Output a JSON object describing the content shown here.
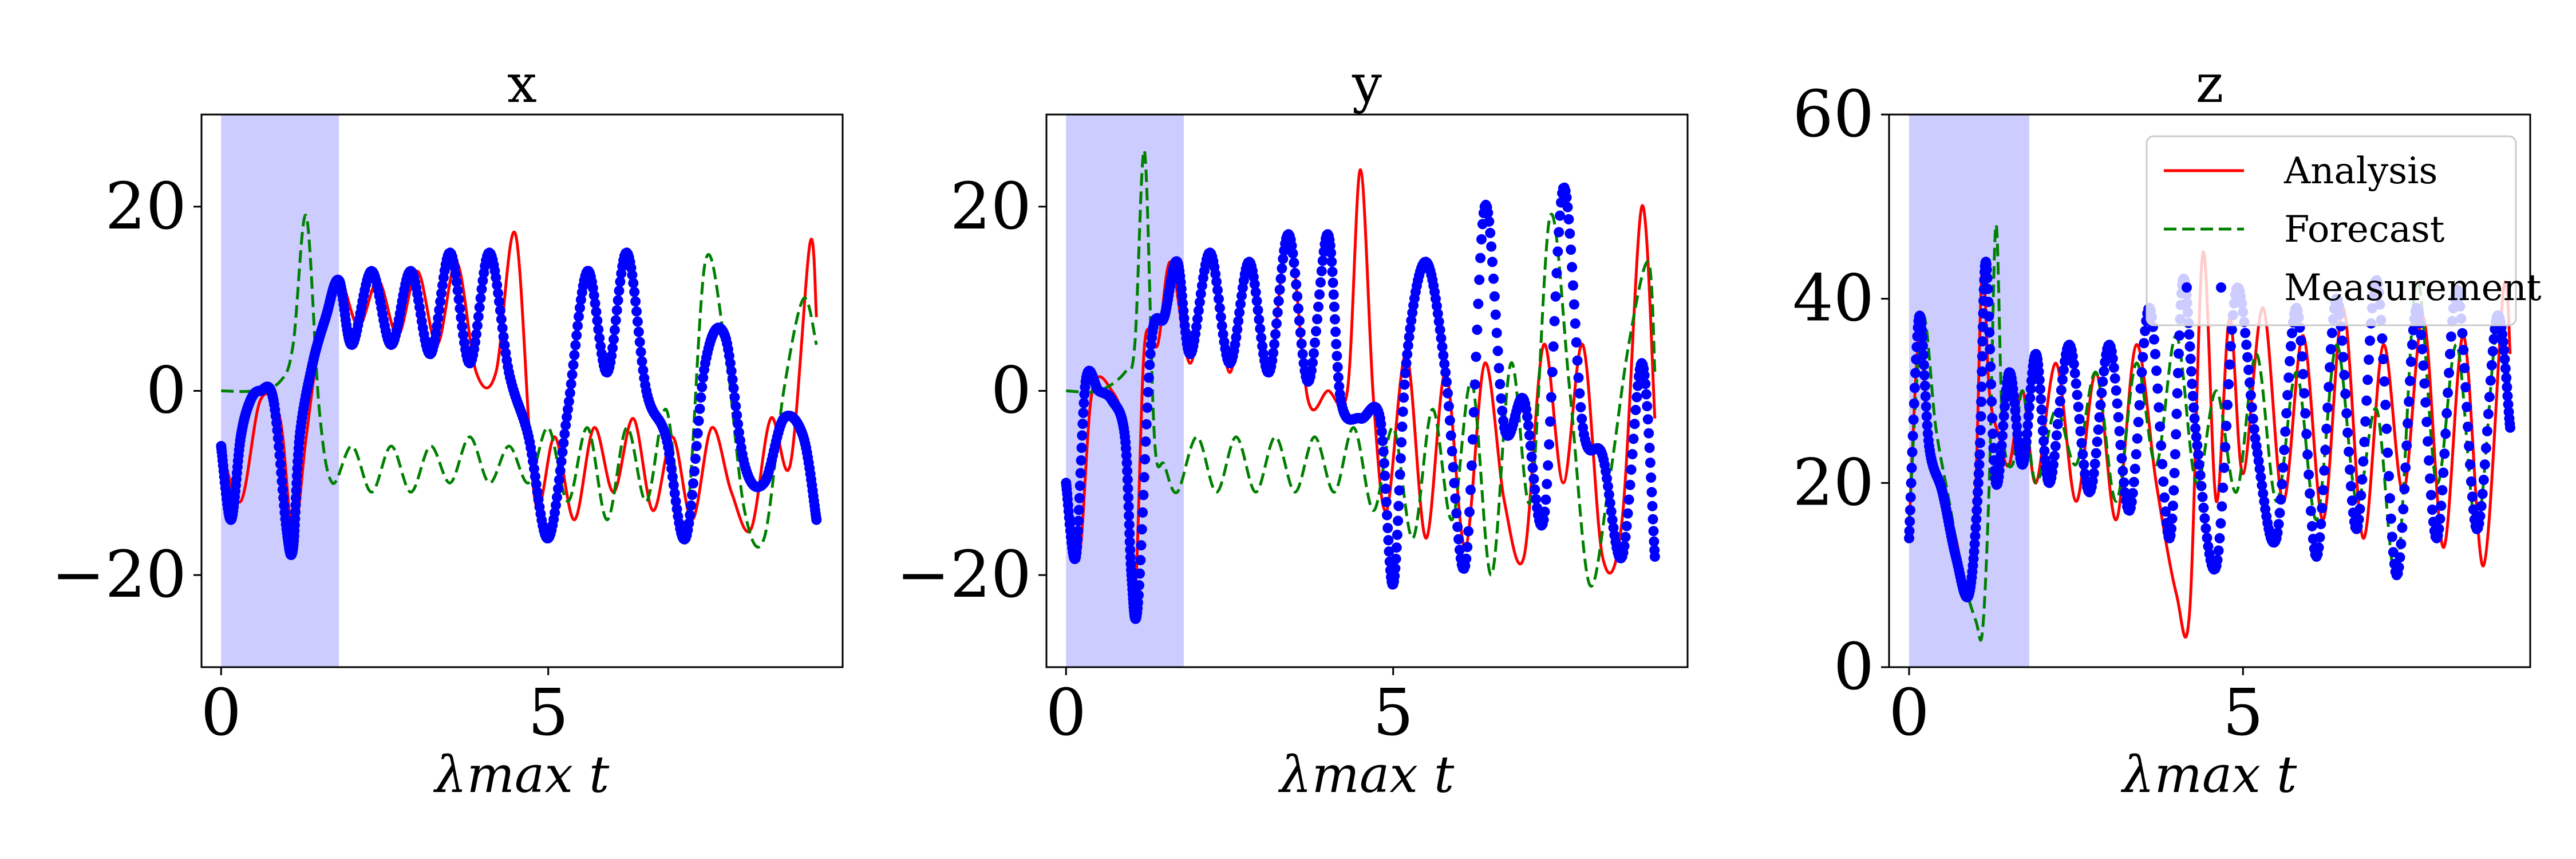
{
  "chart_data": [
    {
      "type": "line",
      "title": "x",
      "xlabel": "λmax t",
      "ylabel": "",
      "xlim": [
        -0.3,
        9.5
      ],
      "ylim": [
        -30,
        30
      ],
      "xticks": [
        0,
        5
      ],
      "yticks": [
        -20,
        0,
        20
      ],
      "ytick_labels": [
        "−20",
        "0",
        "20"
      ],
      "grid": false,
      "shaded_region": [
        0,
        1.8
      ],
      "series": [
        {
          "name": "Analysis",
          "color": "#ff0000",
          "style": "solid",
          "x": [
            0.0,
            0.3,
            0.6,
            0.9,
            1.1,
            1.3,
            1.5,
            1.8,
            2.1,
            2.4,
            2.7,
            3.0,
            3.3,
            3.6,
            3.9,
            4.2,
            4.5,
            4.8,
            5.1,
            5.4,
            5.7,
            6.0,
            6.3,
            6.6,
            6.9,
            7.2,
            7.5,
            7.8,
            8.1,
            8.4,
            8.7,
            9.0,
            9.1
          ],
          "y": [
            -6,
            -12,
            -1,
            -3,
            -16,
            -5,
            5,
            12,
            7,
            12,
            6,
            13,
            5,
            14,
            2,
            2,
            17,
            -12,
            -5,
            -14,
            -4,
            -11,
            -3,
            -13,
            -5,
            -14,
            -4,
            -11,
            -15,
            -3,
            -8,
            16,
            8
          ]
        },
        {
          "name": "Forecast",
          "color": "#008000",
          "style": "dashed",
          "x": [
            0.0,
            0.5,
            0.9,
            1.1,
            1.3,
            1.5,
            1.7,
            2.0,
            2.3,
            2.6,
            2.9,
            3.2,
            3.5,
            3.8,
            4.1,
            4.4,
            4.7,
            5.0,
            5.3,
            5.6,
            5.9,
            6.2,
            6.5,
            6.8,
            7.1,
            7.4,
            7.7,
            8.0,
            8.3,
            8.6,
            8.9,
            9.1
          ],
          "y": [
            0,
            0,
            1,
            5,
            19,
            -2,
            -10,
            -6,
            -11,
            -6,
            -11,
            -6,
            -10,
            -5,
            -10,
            -6,
            -10,
            -4,
            -12,
            -4,
            -14,
            -4,
            -12,
            -2,
            -15,
            14,
            5,
            -13,
            -16,
            0,
            10,
            5
          ]
        },
        {
          "name": "Measurement",
          "color": "#0000ff",
          "style": "dots",
          "x": [
            0.0,
            0.15,
            0.3,
            0.45,
            0.6,
            0.8,
            1.0,
            1.1,
            1.2,
            1.4,
            1.6,
            1.8,
            2.0,
            2.3,
            2.6,
            2.9,
            3.2,
            3.5,
            3.8,
            4.1,
            4.4,
            4.7,
            5.0,
            5.3,
            5.6,
            5.9,
            6.2,
            6.5,
            6.8,
            7.1,
            7.4,
            7.7,
            8.0,
            8.3,
            8.6,
            8.9,
            9.1
          ],
          "y": [
            -6,
            -14,
            -5,
            -1,
            0,
            -1,
            -15,
            -17,
            -5,
            3,
            8,
            12,
            5,
            13,
            5,
            13,
            4,
            15,
            3,
            15,
            2,
            -5,
            -16,
            -2,
            13,
            2,
            15,
            0,
            -5,
            -16,
            3,
            6,
            -8,
            -10,
            -3,
            -5,
            -14
          ]
        }
      ]
    },
    {
      "type": "line",
      "title": "y",
      "xlabel": "λmax t",
      "ylabel": "",
      "xlim": [
        -0.3,
        9.5
      ],
      "ylim": [
        -30,
        30
      ],
      "xticks": [
        0,
        5
      ],
      "yticks": [
        -20,
        0,
        20
      ],
      "ytick_labels": [
        "−20",
        "0",
        "20"
      ],
      "grid": false,
      "shaded_region": [
        0,
        1.8
      ],
      "series": [
        {
          "name": "Analysis",
          "color": "#ff0000",
          "style": "solid",
          "x": [
            0.0,
            0.2,
            0.4,
            0.7,
            0.9,
            1.05,
            1.2,
            1.4,
            1.6,
            1.9,
            2.2,
            2.5,
            2.8,
            3.1,
            3.4,
            3.7,
            4.0,
            4.3,
            4.5,
            4.7,
            4.9,
            5.2,
            5.5,
            5.8,
            6.1,
            6.4,
            6.7,
            7.0,
            7.3,
            7.6,
            7.9,
            8.2,
            8.5,
            8.8,
            9.0
          ],
          "y": [
            -12,
            -18,
            0,
            0,
            -5,
            -22,
            5,
            5,
            14,
            3,
            15,
            2,
            14,
            2,
            17,
            -1,
            0,
            0,
            24,
            -1,
            -13,
            4,
            -16,
            2,
            -17,
            3,
            -12,
            -18,
            5,
            -10,
            5,
            -18,
            -14,
            20,
            -3
          ]
        },
        {
          "name": "Forecast",
          "color": "#008000",
          "style": "dashed",
          "x": [
            0.0,
            0.5,
            0.9,
            1.05,
            1.2,
            1.35,
            1.5,
            1.7,
            2.0,
            2.3,
            2.6,
            2.9,
            3.2,
            3.5,
            3.8,
            4.1,
            4.4,
            4.7,
            5.0,
            5.3,
            5.6,
            5.9,
            6.2,
            6.5,
            6.8,
            7.1,
            7.4,
            7.7,
            8.0,
            8.3,
            8.6,
            8.9,
            9.0
          ],
          "y": [
            0,
            0,
            2,
            5,
            26,
            -5,
            -8,
            -11,
            -5,
            -11,
            -5,
            -11,
            -5,
            -11,
            -5,
            -11,
            -4,
            -13,
            -4,
            -16,
            -2,
            -14,
            1,
            -20,
            3,
            -12,
            19,
            0,
            -21,
            -10,
            5,
            14,
            2
          ]
        },
        {
          "name": "Measurement",
          "color": "#0000ff",
          "style": "dots",
          "x": [
            0.0,
            0.15,
            0.3,
            0.5,
            0.7,
            0.9,
            1.0,
            1.1,
            1.3,
            1.5,
            1.7,
            1.9,
            2.2,
            2.5,
            2.8,
            3.1,
            3.4,
            3.7,
            4.0,
            4.2,
            4.5,
            4.8,
            5.0,
            5.2,
            5.5,
            5.8,
            6.1,
            6.4,
            6.7,
            7.0,
            7.3,
            7.6,
            7.9,
            8.2,
            8.5,
            8.8,
            9.0
          ],
          "y": [
            -10,
            -18,
            1,
            0,
            -1,
            -5,
            -20,
            -23,
            5,
            8,
            14,
            4,
            15,
            3,
            14,
            2,
            17,
            1,
            17,
            -1,
            -3,
            -3,
            -21,
            3,
            14,
            2,
            -19,
            20,
            -4,
            -1,
            -14,
            22,
            -4,
            -7,
            -18,
            3,
            -18
          ]
        }
      ]
    },
    {
      "type": "line",
      "title": "z",
      "xlabel": "λmax t",
      "ylabel": "",
      "xlim": [
        -0.3,
        9.3
      ],
      "ylim": [
        0,
        60
      ],
      "xticks": [
        0,
        5
      ],
      "yticks": [
        0,
        20,
        40,
        60
      ],
      "ytick_labels": [
        "0",
        "20",
        "40",
        "60"
      ],
      "grid": false,
      "shaded_region": [
        0,
        1.8
      ],
      "legend": {
        "position": "top-right",
        "entries": [
          "Analysis",
          "Forecast",
          "Measurement"
        ]
      },
      "series": [
        {
          "name": "Analysis",
          "color": "#ff0000",
          "style": "solid",
          "x": [
            0.0,
            0.15,
            0.3,
            0.5,
            0.7,
            0.9,
            1.0,
            1.1,
            1.2,
            1.35,
            1.5,
            1.7,
            1.9,
            2.2,
            2.5,
            2.8,
            3.1,
            3.4,
            3.7,
            4.0,
            4.2,
            4.4,
            4.6,
            4.8,
            5.0,
            5.3,
            5.6,
            5.9,
            6.2,
            6.5,
            6.8,
            7.1,
            7.4,
            7.7,
            8.0,
            8.3,
            8.6,
            8.9,
            9.0
          ],
          "y": [
            15,
            36,
            24,
            20,
            14,
            8,
            20,
            44,
            30,
            25,
            22,
            30,
            20,
            33,
            18,
            32,
            16,
            35,
            20,
            8,
            6,
            45,
            18,
            38,
            21,
            39,
            18,
            36,
            16,
            39,
            14,
            35,
            19,
            38,
            13,
            36,
            11,
            41,
            34
          ]
        },
        {
          "name": "Forecast",
          "color": "#008000",
          "style": "dashed",
          "x": [
            0.0,
            0.2,
            0.4,
            0.6,
            0.8,
            1.0,
            1.1,
            1.2,
            1.3,
            1.4,
            1.55,
            1.7,
            1.9,
            2.2,
            2.5,
            2.8,
            3.1,
            3.4,
            3.7,
            4.0,
            4.3,
            4.6,
            4.9,
            5.2,
            5.5,
            5.8,
            6.1,
            6.4,
            6.7,
            7.0,
            7.3,
            7.6,
            7.9,
            8.2,
            8.5,
            8.8,
            9.0
          ],
          "y": [
            16,
            38,
            26,
            18,
            10,
            5,
            4,
            20,
            48,
            26,
            22,
            30,
            20,
            28,
            22,
            32,
            18,
            33,
            22,
            36,
            20,
            30,
            19,
            34,
            18,
            32,
            16,
            35,
            18,
            28,
            10,
            42,
            20,
            35,
            15,
            37,
            30
          ]
        },
        {
          "name": "Measurement",
          "color": "#0000ff",
          "style": "dots",
          "x": [
            0.0,
            0.15,
            0.3,
            0.5,
            0.7,
            0.9,
            1.05,
            1.15,
            1.3,
            1.5,
            1.7,
            1.9,
            2.1,
            2.4,
            2.7,
            3.0,
            3.3,
            3.6,
            3.9,
            4.1,
            4.3,
            4.6,
            4.9,
            5.2,
            5.5,
            5.8,
            6.1,
            6.4,
            6.7,
            7.0,
            7.3,
            7.6,
            7.9,
            8.2,
            8.5,
            8.8,
            9.0
          ],
          "y": [
            14,
            38,
            24,
            19,
            12,
            8,
            22,
            44,
            20,
            32,
            22,
            34,
            20,
            35,
            19,
            35,
            17,
            39,
            14,
            42,
            25,
            11,
            41,
            24,
            14,
            39,
            12,
            40,
            15,
            42,
            10,
            39,
            14,
            41,
            15,
            38,
            26
          ]
        }
      ]
    }
  ]
}
